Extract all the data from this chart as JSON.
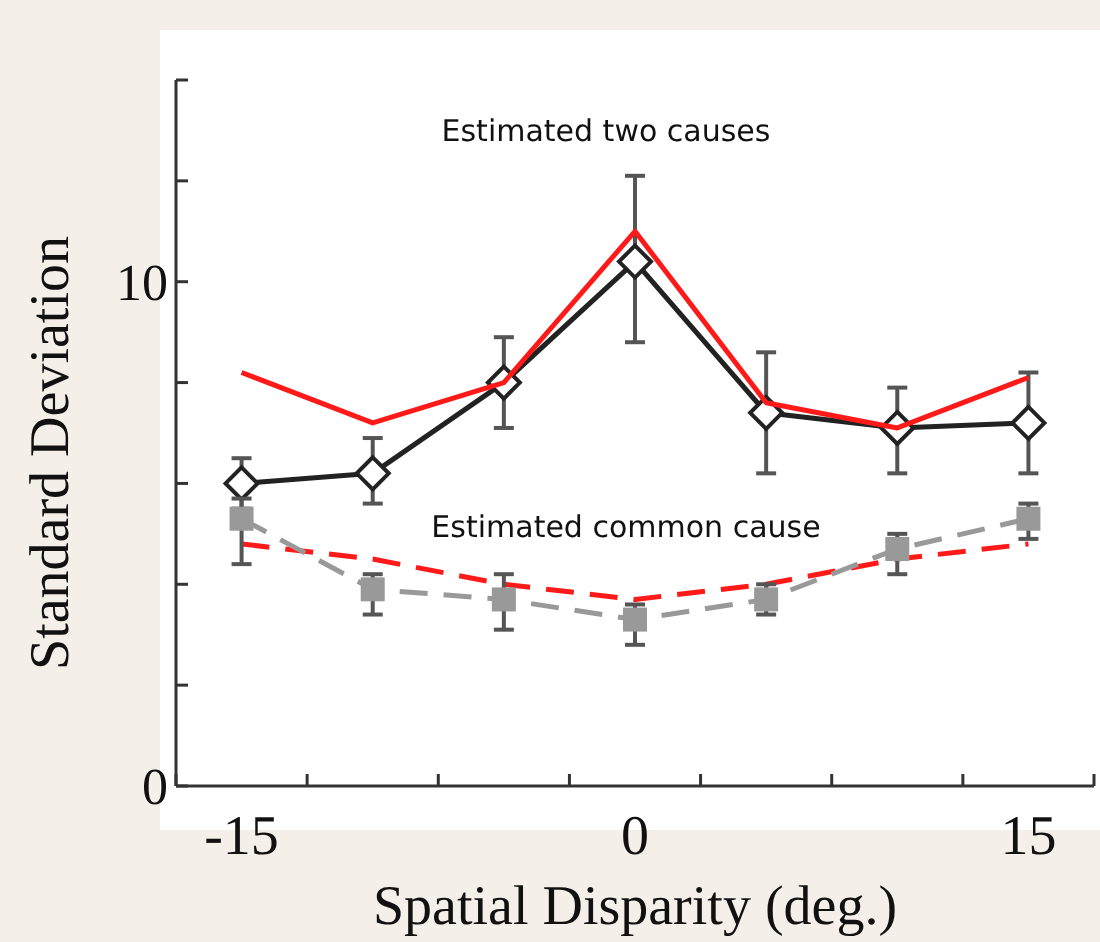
{
  "chart_data": {
    "type": "line",
    "xlabel": "Spatial Disparity (deg.)",
    "ylabel": "Standard Deviation",
    "x": [
      -15,
      -10,
      -5,
      0,
      5,
      10,
      15
    ],
    "xlim": [
      -17.5,
      17.5
    ],
    "xticks": [
      {
        "value": -17.5,
        "label": null
      },
      {
        "value": -15,
        "label": "-15"
      },
      {
        "value": -12.5,
        "label": null
      },
      {
        "value": -7.5,
        "label": null
      },
      {
        "value": -2.5,
        "label": null
      },
      {
        "value": 0,
        "label": "0"
      },
      {
        "value": 2.5,
        "label": null
      },
      {
        "value": 7.5,
        "label": null
      },
      {
        "value": 12.5,
        "label": null
      },
      {
        "value": 15,
        "label": "15"
      },
      {
        "value": 17.5,
        "label": null
      }
    ],
    "ylim": [
      0,
      14
    ],
    "yticks": [
      0,
      {
        "value": 2,
        "label": null
      },
      {
        "value": 4,
        "label": null
      },
      {
        "value": 6,
        "label": null
      },
      {
        "value": 8,
        "label": null
      },
      10,
      {
        "value": 12,
        "label": null
      },
      {
        "value": 14,
        "label": null
      }
    ],
    "grid": false,
    "series": [
      {
        "color": "#222222",
        "marker": "diamond",
        "line_style": "solid",
        "values": [
          6.0,
          6.2,
          8.0,
          10.4,
          7.4,
          7.1,
          7.2
        ],
        "errors": [
          [
            5.5,
            6.5
          ],
          [
            5.6,
            6.9
          ],
          [
            7.1,
            8.9
          ],
          [
            8.8,
            12.1
          ],
          [
            6.2,
            8.6
          ],
          [
            6.2,
            7.9
          ],
          [
            6.2,
            8.2
          ]
        ]
      },
      {
        "color": "#ff1a1a",
        "marker": "none",
        "line_style": "solid",
        "values": [
          8.2,
          7.2,
          8.0,
          11.0,
          7.6,
          7.1,
          8.1
        ]
      },
      {
        "color": "#ff1a1a",
        "marker": "none",
        "line_style": "dashed",
        "values": [
          4.8,
          4.5,
          4.0,
          3.7,
          4.0,
          4.5,
          4.8
        ]
      },
      {
        "color": "#999999",
        "marker": "square",
        "line_style": "dashed",
        "values": [
          5.3,
          3.9,
          3.7,
          3.3,
          3.7,
          4.7,
          5.3
        ],
        "errors": [
          [
            4.4,
            5.7
          ],
          [
            3.4,
            4.2
          ],
          [
            3.1,
            4.2
          ],
          [
            2.8,
            3.6
          ],
          [
            3.4,
            4.0
          ],
          [
            4.2,
            5.0
          ],
          [
            4.9,
            5.6
          ]
        ]
      }
    ],
    "annotations": [
      "Estimated two causes",
      "Estimated common cause"
    ]
  }
}
